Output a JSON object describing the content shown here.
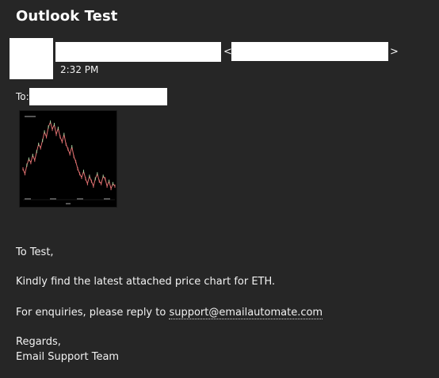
{
  "email": {
    "subject": "Outlook Test",
    "open_bracket": "<",
    "close_bracket": ">",
    "time": "2:32 PM",
    "to_label": "To:",
    "body": {
      "greeting": "To Test,",
      "line1": "Kindly find the latest attached price chart for ETH.",
      "line2_prefix": "For enquiries, please reply to ",
      "support_email": "support@emailautomate.com",
      "regards": "Regards,",
      "signature": "Email Support Team"
    }
  },
  "chart_data": {
    "type": "line",
    "title": "",
    "xlabel": "",
    "ylabel": "",
    "background": "#000000",
    "series": [
      {
        "color": "#e07070",
        "values": [
          52,
          48,
          55,
          60,
          57,
          63,
          59,
          66,
          72,
          69,
          75,
          82,
          78,
          86,
          90,
          84,
          88,
          80,
          85,
          78,
          74,
          80,
          72,
          68,
          64,
          70,
          62,
          58,
          52,
          48,
          45,
          50,
          44,
          40,
          46,
          42,
          38,
          44,
          48,
          42,
          40,
          46,
          44,
          38,
          42,
          36,
          40,
          38
        ]
      }
    ]
  }
}
